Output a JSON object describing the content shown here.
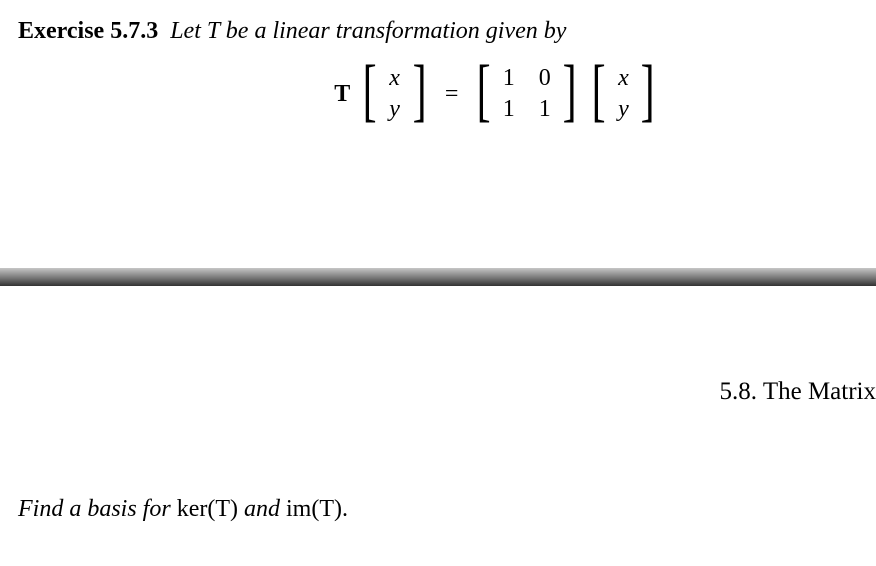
{
  "exercise": {
    "number": "Exercise 5.7.3",
    "prompt": "Let T be a linear transformation given by"
  },
  "equation": {
    "T": "T",
    "vec_in_top": "x",
    "vec_in_bottom": "y",
    "equals": "=",
    "matrix": {
      "r1c1": "1",
      "r1c2": "0",
      "r2c1": "1",
      "r2c2": "1"
    },
    "vec_out_top": "x",
    "vec_out_bottom": "y"
  },
  "section": {
    "heading": "5.8. The Matrix"
  },
  "task": {
    "pre": "Find a basis for ",
    "ker": "ker",
    "T1": "(T)",
    "mid": " and ",
    "im": "im",
    "T2": "(T)."
  },
  "brackets": {
    "left": "[",
    "right": "]"
  }
}
